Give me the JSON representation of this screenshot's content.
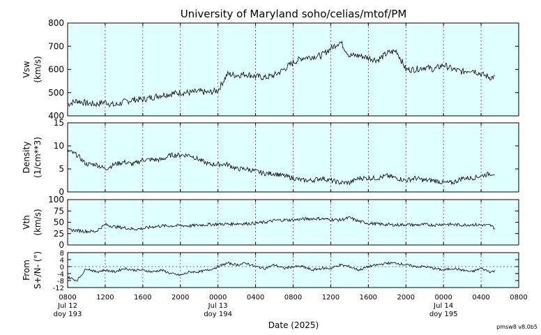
{
  "title": "University of Maryland  soho/celias/mtof/PM",
  "xlabel": "Date (2025)",
  "version": "pmsw8 v8.0b5",
  "colors": {
    "panel_bg": "#e0ffff",
    "line": "#000000",
    "grid": "#555555"
  },
  "x_axis": {
    "unit": "hours since 2025-07-12 08:00 UTC",
    "range": [
      0,
      48
    ],
    "tick_labels": [
      "0800",
      "1200",
      "1600",
      "2000",
      "0000",
      "0400",
      "0800",
      "1200",
      "1600",
      "2000",
      "0000",
      "0400",
      "0800"
    ],
    "date_labels": [
      {
        "line1": "Jul 12",
        "line2": "doy 193",
        "hour": 0
      },
      {
        "line1": "Jul 13",
        "line2": "doy 194",
        "hour": 16
      },
      {
        "line1": "Jul 14",
        "line2": "doy 195",
        "hour": 40
      }
    ]
  },
  "chart_data": [
    {
      "type": "line",
      "ylabel_line1": "Vsw",
      "ylabel_line2": "(km/s)",
      "ylim": [
        400,
        800
      ],
      "yticks": [
        "400",
        "500",
        "600",
        "700",
        "800"
      ],
      "ytick_values": [
        400,
        500,
        600,
        700,
        800
      ],
      "grid": "vertical dotted every 4 h",
      "x": [
        0,
        1,
        2,
        3,
        4,
        5,
        6,
        7,
        8,
        9,
        10,
        11,
        12,
        13,
        14,
        15,
        16,
        17,
        18,
        19,
        20,
        21,
        22,
        23,
        24,
        25,
        26,
        27,
        28,
        29,
        30,
        31,
        32,
        33,
        34,
        35,
        36,
        37,
        38,
        39,
        40,
        41,
        42,
        43,
        44,
        45,
        46,
        47,
        48
      ],
      "values": [
        450,
        465,
        455,
        450,
        460,
        445,
        460,
        470,
        470,
        480,
        490,
        495,
        500,
        500,
        505,
        500,
        510,
        580,
        575,
        580,
        570,
        565,
        575,
        600,
        630,
        650,
        655,
        660,
        690,
        720,
        660,
        660,
        650,
        640,
        670,
        680,
        600,
        600,
        610,
        600,
        620,
        600,
        590,
        600,
        580,
        565,
        570,
        575,
        580
      ],
      "series_end_hour": 45.5
    },
    {
      "type": "line",
      "ylabel_line1": "Density",
      "ylabel_line2": "(1/cm**3)",
      "ylim": [
        0,
        15
      ],
      "yticks": [
        "0",
        "5",
        "10",
        "15"
      ],
      "ytick_values": [
        0,
        5,
        10,
        15
      ],
      "grid": "vertical dotted every 4 h",
      "x": [
        0,
        1,
        2,
        3,
        4,
        5,
        6,
        7,
        8,
        9,
        10,
        11,
        12,
        13,
        14,
        15,
        16,
        17,
        18,
        19,
        20,
        21,
        22,
        23,
        24,
        25,
        26,
        27,
        28,
        29,
        30,
        31,
        32,
        33,
        34,
        35,
        36,
        37,
        38,
        39,
        40,
        41,
        42,
        43,
        44,
        45,
        46,
        47,
        48
      ],
      "values": [
        9,
        8,
        6,
        6,
        5,
        6,
        6.5,
        6,
        7,
        7,
        7,
        8,
        8,
        8,
        7,
        6,
        6,
        6,
        5,
        5,
        4.5,
        4,
        4,
        3.5,
        3,
        2.5,
        2.5,
        3,
        2.5,
        2,
        2,
        3,
        3,
        3,
        3.5,
        3,
        2.5,
        3,
        2.5,
        2.5,
        2,
        2,
        3,
        3,
        3.5,
        4,
        4,
        3,
        3
      ],
      "series_end_hour": 45.5
    },
    {
      "type": "line",
      "ylabel_line1": "Vth",
      "ylabel_line2": "(km/s)",
      "ylim": [
        0,
        100
      ],
      "yticks": [
        "0",
        "25",
        "50",
        "75",
        "100"
      ],
      "ytick_values": [
        0,
        25,
        50,
        75,
        100
      ],
      "grid": "vertical dotted every 4 h",
      "x": [
        0,
        1,
        2,
        3,
        4,
        5,
        6,
        7,
        8,
        9,
        10,
        11,
        12,
        13,
        14,
        15,
        16,
        17,
        18,
        19,
        20,
        21,
        22,
        23,
        24,
        25,
        26,
        27,
        28,
        29,
        30,
        31,
        32,
        33,
        34,
        35,
        36,
        37,
        38,
        39,
        40,
        41,
        42,
        43,
        44,
        45,
        46,
        47,
        48
      ],
      "values": [
        33,
        32,
        30,
        30,
        45,
        40,
        38,
        35,
        36,
        40,
        42,
        42,
        43,
        42,
        44,
        45,
        46,
        46,
        47,
        47,
        48,
        50,
        54,
        55,
        55,
        57,
        58,
        58,
        56,
        55,
        60,
        52,
        48,
        46,
        45,
        44,
        45,
        44,
        45,
        44,
        46,
        45,
        44,
        45,
        44,
        43,
        30,
        32,
        32
      ],
      "series_end_hour": 45.5
    },
    {
      "type": "line",
      "ylabel_line1": "From",
      "ylabel_line2": "S+/N- (°)",
      "ylim": [
        -12,
        8
      ],
      "yticks": [
        "-12",
        "-8",
        "-4",
        "0",
        "4",
        "8"
      ],
      "ytick_values": [
        -12,
        -8,
        -4,
        0,
        4,
        8
      ],
      "grid": "vertical dotted every 4 h, horizontal dotted at 0",
      "x": [
        0,
        1,
        2,
        3,
        4,
        5,
        6,
        7,
        8,
        9,
        10,
        11,
        12,
        13,
        14,
        15,
        16,
        17,
        18,
        19,
        20,
        21,
        22,
        23,
        24,
        25,
        26,
        27,
        28,
        29,
        30,
        31,
        32,
        33,
        34,
        35,
        36,
        37,
        38,
        39,
        40,
        41,
        42,
        43,
        44,
        45,
        46,
        47,
        48
      ],
      "values": [
        -6,
        -8,
        -1,
        -3,
        -2,
        -3,
        -1,
        -2,
        -2,
        -3,
        -2,
        -4,
        -5,
        -3,
        -3,
        -2,
        0,
        2,
        1,
        2,
        0,
        -1,
        1,
        -1,
        0,
        0,
        -2,
        -1,
        -1,
        1,
        0,
        -2,
        0,
        1,
        2,
        2,
        1,
        0,
        0,
        -1,
        -2,
        -1,
        -2,
        -3,
        -1,
        -3,
        -2,
        -2,
        -2
      ],
      "series_end_hour": 45.5
    }
  ]
}
